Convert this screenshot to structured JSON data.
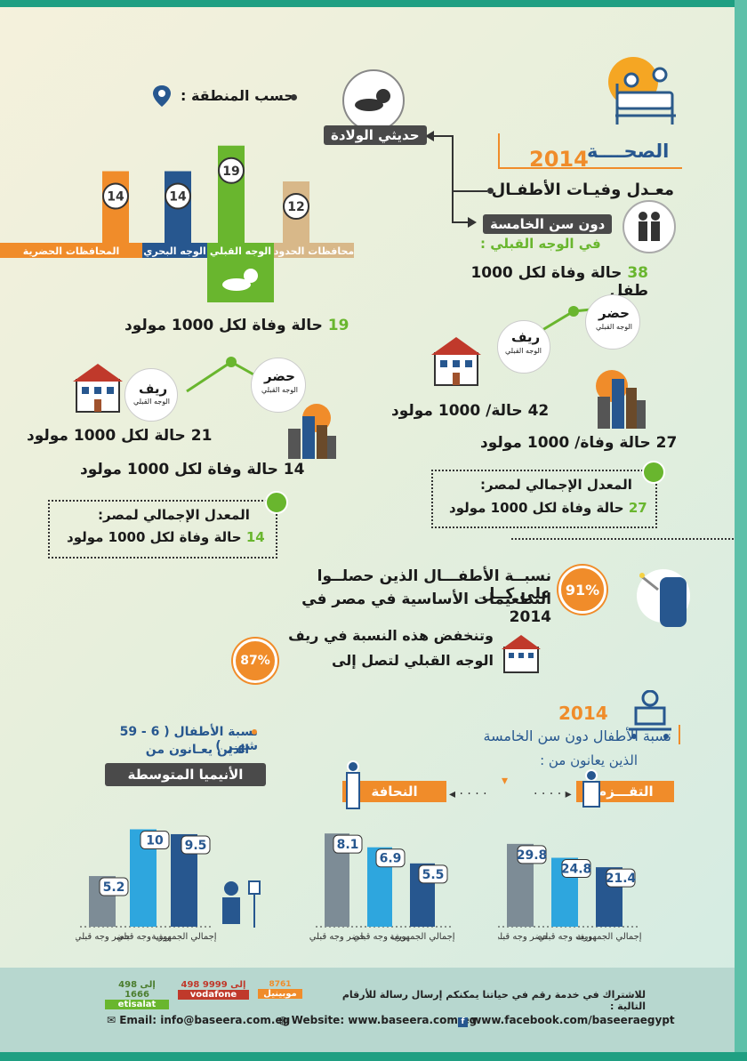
{
  "header": {
    "title": "الصحــــة",
    "year": "2014",
    "infant_mortality": "معـدل وفيـات الأطفـال",
    "newborns": "حديثي الولادة",
    "under_five": "دون سن الخامسة",
    "upper_egypt": "في الوجه القبلي :",
    "by_region": "حسب المنطقة :",
    "upper_rate_value": "38",
    "upper_rate_text": " حالة وفاة لكل 1000 طفل"
  },
  "under_five_section": {
    "urban_label": "حضر",
    "urban_sub": "الوجه القبلي",
    "rural_label": "ريف",
    "rural_sub": "الوجه القبلي",
    "rural_rate": "42 حالة/ 1000 مولود",
    "urban_rate": "27 حالة وفاة/ 1000 مولود",
    "national_title": "المعدل الإجمالي لمصر:",
    "national_value": "27",
    "national_text": " حالة وفاة لكل 1000 مولود"
  },
  "newborn_section": {
    "upper_value": "19",
    "upper_text": " حالة وفاة لكل 1000 مولود",
    "urban_label": "حضر",
    "urban_sub": "الوجه القبلي",
    "rural_label": "ريف",
    "rural_sub": "الوجه القبلي",
    "rural_rate": "21 حالة لكل 1000 مولود",
    "urban_rate": "14 حالة وفاة لكل 1000 مولود",
    "national_title": "المعدل الإجمالي لمصر:",
    "national_value": "14",
    "national_text": " حالة وفاة لكل 1000 مولود"
  },
  "vaccination": {
    "pct_total": "91%",
    "line1": "نسبــة الأطفـــال الذين حصلــوا على كــل",
    "line2": "التطعيمات الأساسية في مصر في 2014",
    "line3": "وتنخفض هذه النسبة في ريف",
    "line4": "الوجه القبلي لتصل إلى",
    "pct_rural": "87%"
  },
  "stunting_section": {
    "year": "2014",
    "title": "نسبة الأطفال دون سن الخامسة",
    "subtitle": "الذين يعانون من :",
    "stunting_label": "التقـــزم",
    "wasting_label": "النحافة"
  },
  "anemia_section": {
    "title1": "نسبة الأطفال ( 6 - 59 شهـر )",
    "title2": "الذين يعـانون من",
    "label": "الأنيميا المتوسطة"
  },
  "chart_data": [
    {
      "type": "bar",
      "title": "حديثي الولادة - حسب المنطقة",
      "categories": [
        "المحافظات الحضرية",
        "الوجه البحري",
        "الوجه القبلي",
        "محافظات الحدود"
      ],
      "values": [
        14,
        14,
        19,
        12
      ],
      "colors": [
        "#f08c2a",
        "#27578f",
        "#69b62e",
        "#d8b889"
      ]
    },
    {
      "type": "bar",
      "title": "التقزم",
      "categories": [
        "حضر وجه قبلي",
        "ريف وجه قبلي",
        "إجمالي الجمهورية"
      ],
      "values": [
        29.8,
        24.8,
        21.4
      ],
      "colors": [
        "#7d8c96",
        "#2ea6de",
        "#27578f"
      ]
    },
    {
      "type": "bar",
      "title": "النحافة",
      "categories": [
        "حضر وجه قبلي",
        "ريف وجه قبلي",
        "إجمالي الجمهورية"
      ],
      "values": [
        8.1,
        6.9,
        5.5
      ],
      "colors": [
        "#7d8c96",
        "#2ea6de",
        "#27578f"
      ]
    },
    {
      "type": "bar",
      "title": "الأنيميا المتوسطة",
      "categories": [
        "حضر وجه قبلي",
        "ريف وجه قبلي",
        "إجمالي الجمهورية"
      ],
      "values": [
        5.2,
        10,
        9.5
      ],
      "colors": [
        "#7d8c96",
        "#2ea6de",
        "#27578f"
      ]
    }
  ],
  "footer": {
    "subscribe": "للاشتراك في خدمة رقم في حياتنا يمكنكم إرسال رسالة للأرقام التالية :",
    "mobinil": "موبينيل",
    "mobinil_num": "8761",
    "vodafone": "vodafone",
    "vodafone_num": "498 إلى 9999",
    "etisalat": "etisalat",
    "etisalat_num": "498 إلى 1666",
    "email": "Email: info@baseera.com.eg",
    "website": "Website: www.baseera.com.eg",
    "facebook": "www.facebook.com/baseeraegypt"
  }
}
